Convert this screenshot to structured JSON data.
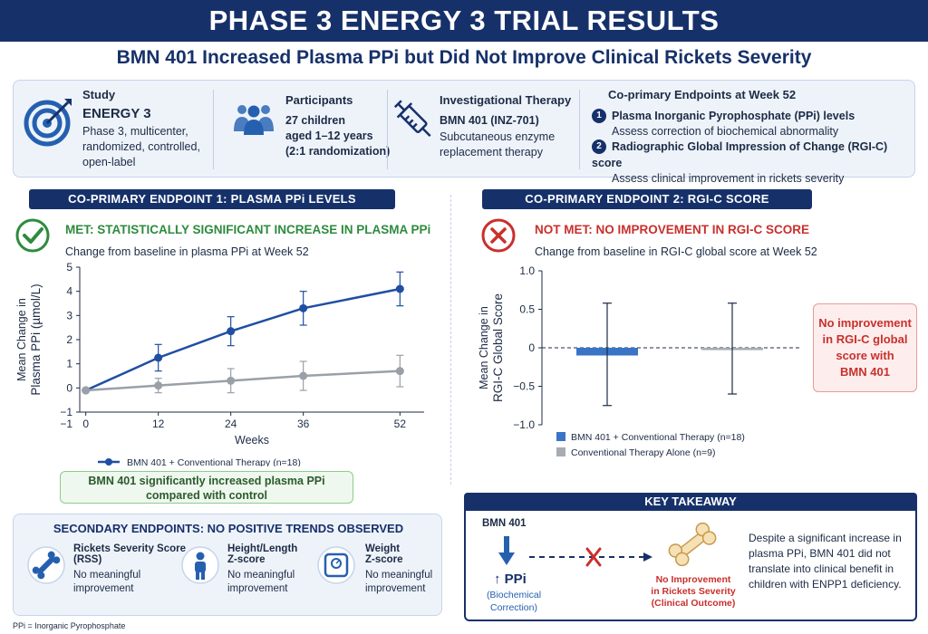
{
  "header": {
    "title": "PHASE 3 ENERGY 3 TRIAL RESULTS",
    "subtitle": "BMN 401 Increased Plasma PPi but Did Not Improve Clinical Rickets Severity"
  },
  "study": {
    "label": "Study",
    "name": "ENERGY 3",
    "lines": [
      "Phase 3, multicenter,",
      "randomized, controlled,",
      "open-label"
    ]
  },
  "participants": {
    "label": "Participants",
    "lines": [
      "27 children",
      "aged 1–12 years",
      "(2:1 randomization)"
    ]
  },
  "therapy": {
    "label": "Investigational Therapy",
    "name": "BMN 401 (INZ-701)",
    "lines": [
      "Subcutaneous enzyme",
      "replacement therapy"
    ]
  },
  "endpoints": {
    "label": "Co-primary Endpoints at Week 52",
    "items": [
      {
        "num": "1",
        "title": "Plasma Inorganic Pyrophosphate (PPi) levels",
        "desc": "Assess correction of biochemical abnormality"
      },
      {
        "num": "2",
        "title": "Radiographic Global Impression of Change (RGI-C) score",
        "desc": "Assess clinical improvement in rickets severity"
      }
    ]
  },
  "endpoint1": {
    "pill": "CO-PRIMARY ENDPOINT 1: PLASMA PPi LEVELS",
    "status": "MET: STATISTICALLY SIGNIFICANT INCREASE IN PLASMA PPi",
    "caption": "Change from baseline in plasma PPi at Week 52",
    "callout": [
      "BMN 401 significantly increased plasma PPi",
      "compared with control"
    ]
  },
  "endpoint2": {
    "pill": "CO-PRIMARY ENDPOINT 2: RGI-C SCORE",
    "status": "NOT MET: NO IMPROVEMENT IN RGI-C SCORE",
    "caption": "Change from baseline in RGI-C global score at Week 52",
    "callout": [
      "No improvement",
      "in RGI-C global",
      "score with",
      "BMN 401"
    ]
  },
  "secondary": {
    "title": "SECONDARY ENDPOINTS: NO POSITIVE TRENDS OBSERVED",
    "items": [
      {
        "title": "Rickets Severity Score",
        "title2": "(RSS)",
        "lines": [
          "No meaningful",
          "improvement"
        ],
        "icon": "bone-icon"
      },
      {
        "title": "Height/Length",
        "title2": "Z-score",
        "lines": [
          "No meaningful",
          "improvement"
        ],
        "icon": "person-icon"
      },
      {
        "title": "Weight",
        "title2": "Z-score",
        "lines": [
          "No meaningful",
          "improvement"
        ],
        "icon": "scale-icon"
      }
    ]
  },
  "takeaway": {
    "title": "KEY TAKEAWAY",
    "drug": "BMN 401",
    "ppi": "↑ PPi",
    "biochem": [
      "(Biochemical",
      "Correction)"
    ],
    "no_improve": [
      "No Improvement",
      "in Rickets Severity",
      "(Clinical Outcome)"
    ],
    "text": [
      "Despite a significant increase in",
      "plasma PPi, BMN 401 did not",
      "translate into clinical benefit in",
      "children with ENPP1 deficiency."
    ]
  },
  "footnote": "PPi = Inorganic Pyrophosphate",
  "colors": {
    "navy": "#16316a",
    "blue_series": "#1f4fa3",
    "gray_series": "#9aa0a8",
    "green": "#2e8b3d",
    "red": "#c8302c",
    "bar_blue": "#3a74c4",
    "bar_gray": "#a7acb2"
  },
  "chart_data": [
    {
      "type": "line",
      "title": "",
      "xlabel": "Weeks",
      "ylabel": "Mean Change in Plasma PPi (µmol/L)",
      "x": [
        0,
        12,
        24,
        36,
        52
      ],
      "xticks": [
        "0",
        "12",
        "24",
        "36",
        "52"
      ],
      "ylim": [
        -1,
        5
      ],
      "yticks": [
        "−1",
        "0",
        "1",
        "2",
        "3",
        "4",
        "5"
      ],
      "series": [
        {
          "name": "BMN 401 + Conventional Therapy (n=18)",
          "values": [
            -0.1,
            1.25,
            2.35,
            3.3,
            4.1
          ],
          "err": [
            0,
            0.55,
            0.6,
            0.7,
            0.7
          ]
        },
        {
          "name": "Conventional Therapy Alone (n=9)",
          "values": [
            -0.1,
            0.1,
            0.3,
            0.5,
            0.7
          ],
          "err": [
            0,
            0.3,
            0.5,
            0.6,
            0.65
          ]
        }
      ]
    },
    {
      "type": "bar",
      "title": "",
      "xlabel": "",
      "ylabel": "Mean Change in RGI-C Global Score",
      "ylim": [
        -1.0,
        1.0
      ],
      "yticks": [
        "1.0",
        "0.5",
        "0",
        "−0.5",
        "−1.0"
      ],
      "series": [
        {
          "name": "BMN 401 + Conventional Therapy (n=18)",
          "value": -0.1,
          "err_low": -0.75,
          "err_high": 0.58
        },
        {
          "name": "Conventional Therapy Alone (n=9)",
          "value": -0.03,
          "err_low": -0.6,
          "err_high": 0.58
        }
      ]
    }
  ]
}
